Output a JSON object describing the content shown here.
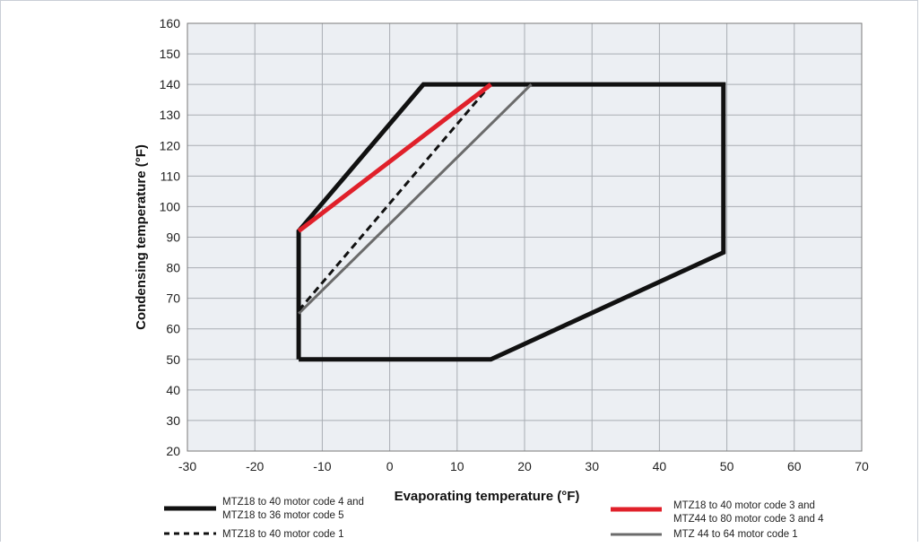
{
  "chart_data": {
    "type": "line",
    "title": "",
    "xlabel": "Evaporating temperature (°F)",
    "ylabel": "Condensing temperature (°F)",
    "xlim": [
      -30,
      70
    ],
    "ylim": [
      20,
      160
    ],
    "xticks": [
      -30,
      -20,
      -10,
      0,
      10,
      20,
      30,
      40,
      50,
      60,
      70
    ],
    "yticks": [
      20,
      30,
      40,
      50,
      60,
      70,
      80,
      90,
      100,
      110,
      120,
      130,
      140,
      150,
      160
    ],
    "grid": true,
    "plot_background": "#eceff3",
    "series": [
      {
        "name": "MTZ18 to 40 motor code 4 and MTZ18 to 36 motor code 5",
        "legend_lines": [
          "MTZ18 to 40 motor code 4 and",
          "MTZ18 to 36 motor code 5"
        ],
        "color": "#111111",
        "style": "solid",
        "weight": "thick",
        "closed": true,
        "points": [
          [
            -13.5,
            50
          ],
          [
            -13.5,
            92
          ],
          [
            5,
            140
          ],
          [
            49.5,
            140
          ],
          [
            49.5,
            85
          ],
          [
            15,
            50
          ],
          [
            -13.5,
            50
          ]
        ]
      },
      {
        "name": "MTZ18 to 40 motor code 3 and MTZ44 to 80 motor code 3 and 4",
        "legend_lines": [
          "MTZ18 to 40 motor code 3 and",
          "MTZ44 to 80 motor code 3 and 4"
        ],
        "color": "#e0202a",
        "style": "solid",
        "weight": "thick",
        "points": [
          [
            -13.5,
            92
          ],
          [
            15,
            140
          ]
        ]
      },
      {
        "name": "MTZ18 to 40 motor code 1",
        "legend_lines": [
          "MTZ18 to 40 motor code 1"
        ],
        "color": "#111111",
        "style": "dashed",
        "weight": "medium",
        "points": [
          [
            -13.5,
            66
          ],
          [
            15,
            140
          ]
        ]
      },
      {
        "name": "MTZ 44 to 64 motor code 1",
        "legend_lines": [
          "MTZ 44 to 64 motor code 1"
        ],
        "color": "#6b6b6b",
        "style": "solid",
        "weight": "medium",
        "points": [
          [
            -13.5,
            65
          ],
          [
            21,
            140
          ]
        ]
      }
    ]
  }
}
